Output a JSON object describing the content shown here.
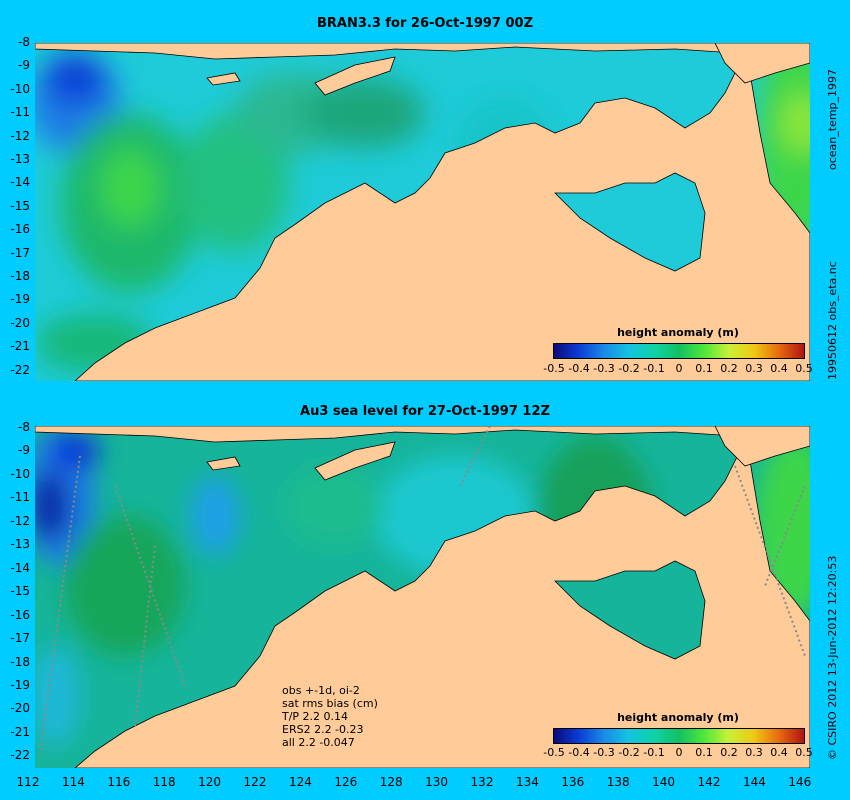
{
  "top_panel": {
    "title": "BRAN3.3 for 26-Oct-1997 00Z",
    "side_label_1": "ocean_temp_1997",
    "side_label_2": "19950612 obs_eta.nc"
  },
  "bottom_panel": {
    "title": "Au3 sea level  for 27-Oct-1997 12Z",
    "side_label": "© CSIRO 2012  13-Jun-2012 12:20:53",
    "annotation": [
      "obs +-1d, oi-2",
      "sat rms bias (cm)",
      "T/P  2.2 0.14",
      "ERS2 2.2 -0.23",
      "all 2.2 -0.047"
    ]
  },
  "colorbar": {
    "title": "height anomaly  (m)",
    "labels": [
      "-0.5",
      "-0.4",
      "-0.3",
      "-0.2",
      "-0.1",
      "0",
      "0.1",
      "0.2",
      "0.3",
      "0.4",
      "0.5"
    ],
    "colors": [
      "#0a0a7a",
      "#0a3dd6",
      "#1a8ae6",
      "#14c4e0",
      "#10d2a8",
      "#12c062",
      "#4ee83a",
      "#c8f03a",
      "#f0c814",
      "#e86a10",
      "#b01414"
    ]
  },
  "y_axis_labels": [
    "-8",
    "-9",
    "-10",
    "-11",
    "-12",
    "-13",
    "-14",
    "-15",
    "-16",
    "-17",
    "-18",
    "-19",
    "-20",
    "-21",
    "-22"
  ],
  "x_axis_labels": [
    "112",
    "114",
    "116",
    "118",
    "120",
    "122",
    "124",
    "126",
    "128",
    "130",
    "132",
    "134",
    "136",
    "138",
    "140",
    "142",
    "144",
    "146"
  ],
  "colors": {
    "background": "#00ccff",
    "land": "#ffcc99",
    "deep_blue": "#0a3dd6",
    "cyan": "#14c4e0",
    "green": "#12c062",
    "light_green": "#4ee83a"
  }
}
